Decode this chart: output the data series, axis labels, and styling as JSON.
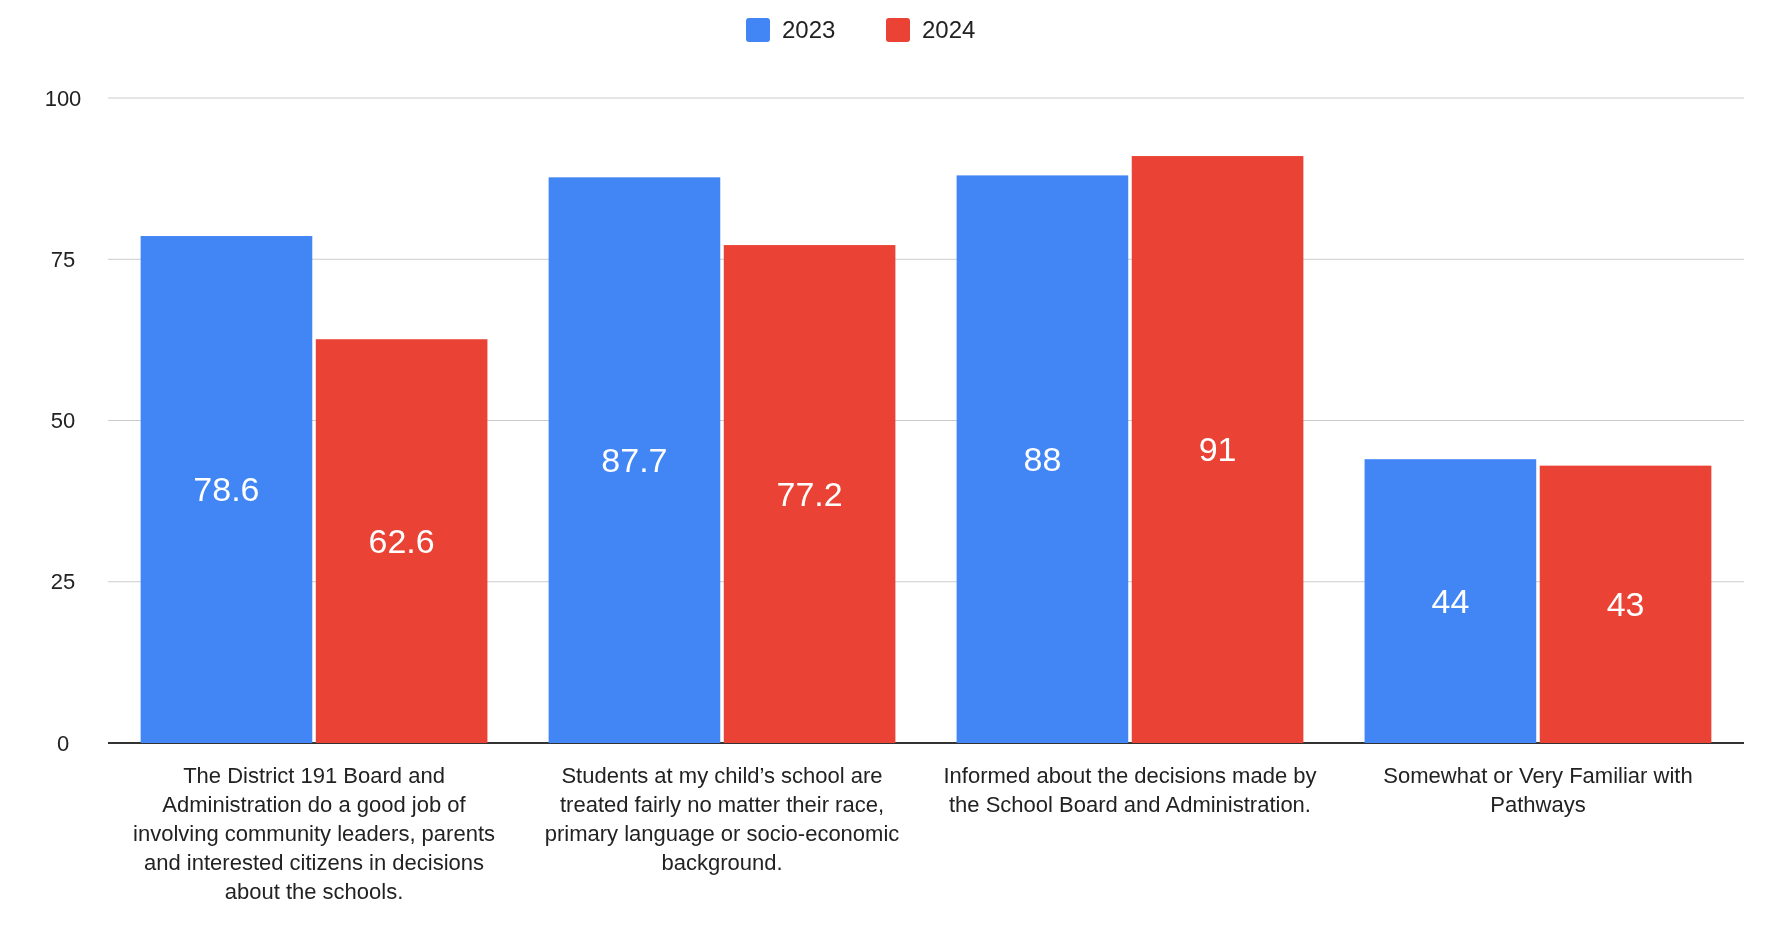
{
  "chart_data": {
    "type": "bar",
    "categories": [
      "The District 191 Board and Administration do a good job of involving community leaders, parents and interested citizens in decisions about the schools.",
      "Students at my child’s school are treated fairly no matter their race, primary language or socio-economic background.",
      "Informed about the decisions made by the School Board and Administration.",
      "Somewhat or Very Familiar with Pathways"
    ],
    "series": [
      {
        "name": "2023",
        "color": "#4285f4",
        "values": [
          78.6,
          87.7,
          88,
          44
        ]
      },
      {
        "name": "2024",
        "color": "#ea4335",
        "values": [
          62.6,
          77.2,
          91,
          43
        ]
      }
    ],
    "ylim": [
      0,
      100
    ],
    "yticks": [
      0,
      25,
      50,
      75,
      100
    ],
    "grid": "y",
    "legend": "top",
    "data_labels": true
  }
}
